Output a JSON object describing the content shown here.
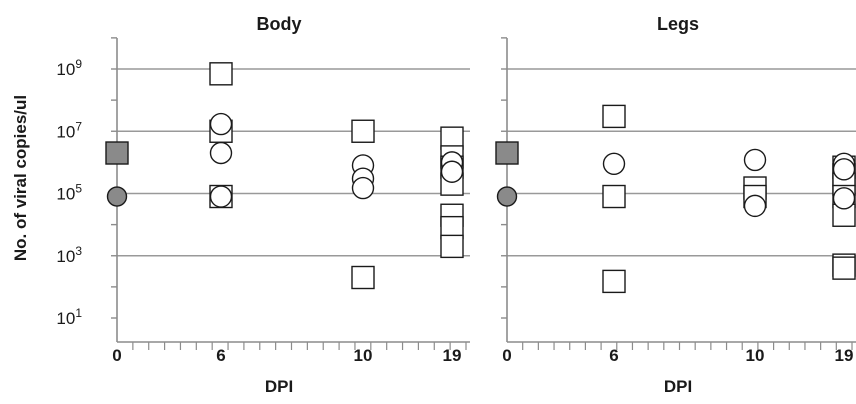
{
  "ylabel": "No. of viral copies/ul",
  "colors": {
    "gridline": "#999999",
    "axis": "#8c8c8c",
    "marker_stroke": "#1a1a1a",
    "marker_fill_open": "#ffffff",
    "marker_fill_control": "#8a8a8a"
  },
  "chart_data": [
    {
      "type": "scatter",
      "title": "Body",
      "xlabel": "DPI",
      "ylabel": "No. of viral copies/ul",
      "x_ticks": [
        "0",
        "6",
        "10",
        "19"
      ],
      "y_scale": "log10",
      "y_ticks": [
        {
          "base": "10",
          "exp": "1"
        },
        {
          "base": "10",
          "exp": "3"
        },
        {
          "base": "10",
          "exp": "5"
        },
        {
          "base": "10",
          "exp": "7"
        },
        {
          "base": "10",
          "exp": "9"
        }
      ],
      "ylim": [
        10,
        10000000000
      ],
      "grid": "horizontal",
      "series": [
        {
          "marker": "square",
          "points": [
            {
              "x": 0,
              "y": 2000000,
              "fill": "control"
            },
            {
              "x": 6,
              "y": 700000000
            },
            {
              "x": 6,
              "y": 10000000
            },
            {
              "x": 6,
              "y": 80000
            },
            {
              "x": 10,
              "y": 10000000
            },
            {
              "x": 10,
              "y": 200
            },
            {
              "x": 19,
              "y": 6000000
            },
            {
              "x": 19,
              "y": 1500000
            },
            {
              "x": 19,
              "y": 700000
            },
            {
              "x": 19,
              "y": 200000
            },
            {
              "x": 19,
              "y": 20000
            },
            {
              "x": 19,
              "y": 8000
            },
            {
              "x": 19,
              "y": 2000
            }
          ]
        },
        {
          "marker": "circle",
          "points": [
            {
              "x": 0,
              "y": 80000,
              "fill": "control"
            },
            {
              "x": 6,
              "y": 17000000
            },
            {
              "x": 6,
              "y": 2000000
            },
            {
              "x": 6,
              "y": 80000
            },
            {
              "x": 10,
              "y": 800000
            },
            {
              "x": 10,
              "y": 300000
            },
            {
              "x": 10,
              "y": 150000
            },
            {
              "x": 19,
              "y": 1000000
            },
            {
              "x": 19,
              "y": 500000
            }
          ]
        }
      ]
    },
    {
      "type": "scatter",
      "title": "Legs",
      "xlabel": "DPI",
      "x_ticks": [
        "0",
        "6",
        "10",
        "19"
      ],
      "y_scale": "log10",
      "ylim": [
        10,
        10000000000
      ],
      "grid": "horizontal",
      "series": [
        {
          "marker": "square",
          "points": [
            {
              "x": 0,
              "y": 2000000,
              "fill": "control"
            },
            {
              "x": 6,
              "y": 30000000
            },
            {
              "x": 6,
              "y": 80000
            },
            {
              "x": 6,
              "y": 150
            },
            {
              "x": 10,
              "y": 150000
            },
            {
              "x": 10,
              "y": 80000
            },
            {
              "x": 19,
              "y": 700000
            },
            {
              "x": 19,
              "y": 400000
            },
            {
              "x": 19,
              "y": 200000
            },
            {
              "x": 19,
              "y": 80000
            },
            {
              "x": 19,
              "y": 20000
            },
            {
              "x": 19,
              "y": 500
            },
            {
              "x": 19,
              "y": 400
            }
          ]
        },
        {
          "marker": "circle",
          "points": [
            {
              "x": 0,
              "y": 80000,
              "fill": "control"
            },
            {
              "x": 6,
              "y": 900000
            },
            {
              "x": 10,
              "y": 1200000
            },
            {
              "x": 10,
              "y": 40000
            },
            {
              "x": 19,
              "y": 900000
            },
            {
              "x": 19,
              "y": 600000
            },
            {
              "x": 19,
              "y": 70000
            }
          ]
        }
      ]
    }
  ]
}
